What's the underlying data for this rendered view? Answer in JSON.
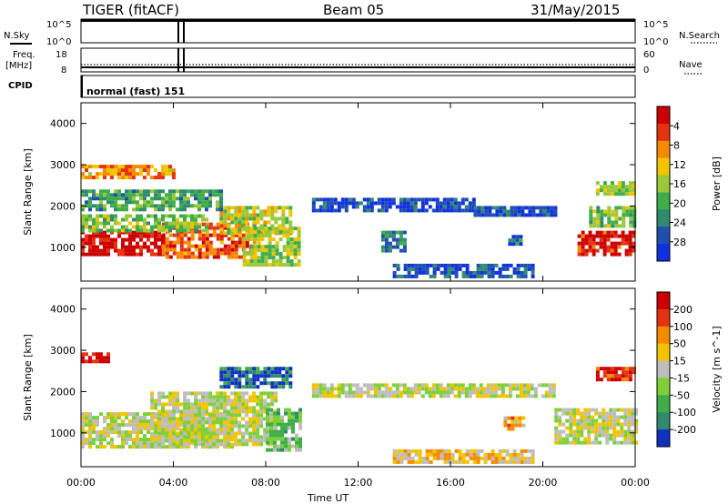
{
  "header": {
    "title": "TIGER (fitACF)",
    "beam": "Beam 05",
    "date": "31/May/2015"
  },
  "aux": {
    "nsky_label": "N.Sky",
    "nsky_ticks": [
      "10^5",
      "10^0"
    ],
    "nsearch_label": "N.Search",
    "nsearch_ticks": [
      "10^5",
      "10^0"
    ],
    "freq_label_1": "Freq.",
    "freq_label_2": "[MHz]",
    "freq_ticks": [
      "18",
      "8"
    ],
    "nave_label": "Nave",
    "nave_ticks": [
      "60",
      "0"
    ],
    "cpid_label": "CPID",
    "cpid_value": "normal (fast) 151"
  },
  "xaxis": {
    "label": "Time UT",
    "ticks": [
      "00:00",
      "04:00",
      "08:00",
      "12:00",
      "16:00",
      "20:00",
      "00:00"
    ]
  },
  "chart_data": [
    {
      "type": "heatmap",
      "name": "power",
      "ylabel": "Slant Range [km]",
      "yticks": [
        "1000",
        "2000",
        "3000",
        "4000"
      ],
      "ylim": [
        180,
        4500
      ],
      "xlim": [
        0,
        24
      ],
      "colorbar_label": "Power [dB]",
      "colorbar_ticks": [
        "4",
        "8",
        "12",
        "16",
        "20",
        "24",
        "28"
      ],
      "colorbar_colors": [
        "#1030e0",
        "#1f4fb0",
        "#2f8a70",
        "#3fae4a",
        "#9bc83a",
        "#f2c400",
        "#f58a00",
        "#e53210",
        "#cc0000"
      ],
      "regions": [
        {
          "t0": 0.0,
          "t1": 3.5,
          "r0": 800,
          "r1": 1400,
          "level": 0.95
        },
        {
          "t0": 3.5,
          "t1": 7.5,
          "r0": 750,
          "r1": 1600,
          "level": 0.8
        },
        {
          "t0": 6.0,
          "t1": 9.0,
          "r0": 1300,
          "r1": 2000,
          "level": 0.55
        },
        {
          "t0": 0.0,
          "t1": 5.5,
          "r0": 1400,
          "r1": 1800,
          "level": 0.45
        },
        {
          "t0": 0.0,
          "t1": 6.0,
          "r0": 1900,
          "r1": 2400,
          "level": 0.35
        },
        {
          "t0": 0.0,
          "t1": 4.0,
          "r0": 2700,
          "r1": 3000,
          "level": 0.7
        },
        {
          "t0": 7.0,
          "t1": 9.5,
          "r0": 600,
          "r1": 1500,
          "level": 0.5
        },
        {
          "t0": 10.0,
          "t1": 17.0,
          "r0": 1900,
          "r1": 2200,
          "level": 0.12
        },
        {
          "t0": 17.0,
          "t1": 20.5,
          "r0": 1750,
          "r1": 2000,
          "level": 0.12
        },
        {
          "t0": 13.5,
          "t1": 19.5,
          "r0": 300,
          "r1": 600,
          "level": 0.15
        },
        {
          "t0": 13.0,
          "t1": 14.0,
          "r0": 900,
          "r1": 1400,
          "level": 0.25
        },
        {
          "t0": 18.5,
          "t1": 19.0,
          "r0": 1100,
          "r1": 1300,
          "level": 0.2
        },
        {
          "t0": 21.5,
          "t1": 24.0,
          "r0": 800,
          "r1": 1400,
          "level": 0.9
        },
        {
          "t0": 22.0,
          "t1": 24.0,
          "r0": 1500,
          "r1": 2000,
          "level": 0.45
        },
        {
          "t0": 22.3,
          "t1": 24.0,
          "r0": 2300,
          "r1": 2600,
          "level": 0.5
        }
      ]
    },
    {
      "type": "heatmap",
      "name": "velocity",
      "ylabel": "Slant Range [km]",
      "yticks": [
        "1000",
        "2000",
        "3000",
        "4000"
      ],
      "ylim": [
        180,
        4500
      ],
      "xlim": [
        0,
        24
      ],
      "colorbar_label": "Velocity [m s^-1]",
      "colorbar_ticks": [
        "200",
        "100",
        "50",
        "15",
        "-15",
        "-50",
        "-100",
        "-200"
      ],
      "colorbar_colors": [
        "#1030c0",
        "#2f8a70",
        "#3fae4a",
        "#7ed03a",
        "#bdbdbd",
        "#f2c400",
        "#f58a00",
        "#e53210",
        "#cc0000"
      ],
      "regions": [
        {
          "t0": 0.0,
          "t1": 6.5,
          "r0": 700,
          "r1": 1500,
          "level": 0.5
        },
        {
          "t0": 3.0,
          "t1": 8.5,
          "r0": 750,
          "r1": 2000,
          "level": 0.5
        },
        {
          "t0": 0.0,
          "t1": 1.2,
          "r0": 2750,
          "r1": 2950,
          "level": 0.95
        },
        {
          "t0": 6.0,
          "t1": 9.0,
          "r0": 2100,
          "r1": 2600,
          "level": 0.1
        },
        {
          "t0": 8.0,
          "t1": 9.5,
          "r0": 600,
          "r1": 1600,
          "level": 0.35
        },
        {
          "t0": 10.0,
          "t1": 20.5,
          "r0": 1900,
          "r1": 2200,
          "level": 0.5
        },
        {
          "t0": 13.5,
          "t1": 19.5,
          "r0": 300,
          "r1": 600,
          "level": 0.6
        },
        {
          "t0": 18.3,
          "t1": 19.2,
          "r0": 1100,
          "r1": 1400,
          "level": 0.65
        },
        {
          "t0": 20.5,
          "t1": 24.0,
          "r0": 800,
          "r1": 1600,
          "level": 0.5
        },
        {
          "t0": 22.3,
          "t1": 24.0,
          "r0": 2300,
          "r1": 2600,
          "level": 0.85
        }
      ]
    }
  ]
}
